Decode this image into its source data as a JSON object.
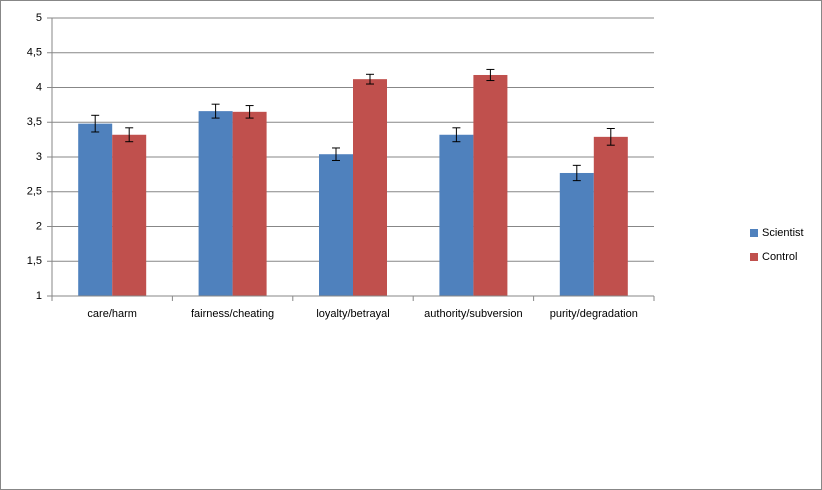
{
  "chart_data": {
    "type": "bar",
    "categories": [
      "care/harm",
      "fairness/cheating",
      "loyalty/betrayal",
      "authority/subversion",
      "purity/degradation"
    ],
    "series": [
      {
        "name": "Scientist",
        "color": "#4f81bd",
        "values": [
          3.48,
          3.66,
          3.04,
          3.32,
          2.77
        ],
        "errors": [
          0.12,
          0.1,
          0.09,
          0.1,
          0.11
        ]
      },
      {
        "name": "Control",
        "color": "#c0504d",
        "values": [
          3.32,
          3.65,
          4.12,
          4.18,
          3.29
        ],
        "errors": [
          0.1,
          0.09,
          0.07,
          0.08,
          0.12
        ]
      }
    ],
    "ylim": [
      1,
      5
    ],
    "yticks": [
      1,
      {
        "value": 1.5,
        "label": "1,5"
      },
      2,
      {
        "value": 2.5,
        "label": "2,5"
      },
      3,
      {
        "value": 3.5,
        "label": "3,5"
      },
      4,
      {
        "value": 4.5,
        "label": "4,5"
      },
      5
    ],
    "grid": true,
    "legend": "right"
  }
}
